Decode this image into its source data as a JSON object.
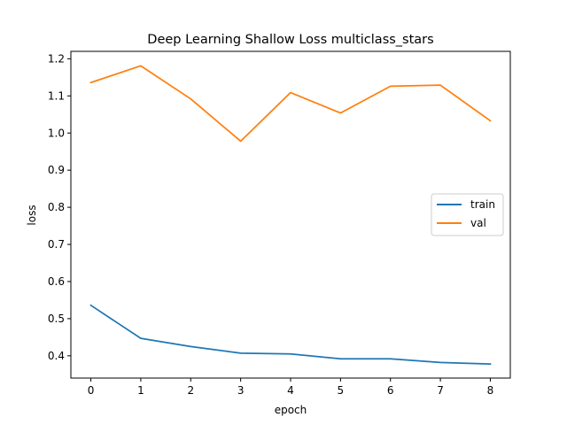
{
  "chart_data": {
    "type": "line",
    "title": "Deep Learning Shallow Loss multiclass_stars",
    "xlabel": "epoch",
    "ylabel": "loss",
    "x": [
      0,
      1,
      2,
      3,
      4,
      5,
      6,
      7,
      8
    ],
    "xlim": [
      -0.4,
      8.4
    ],
    "ylim": [
      0.34,
      1.22
    ],
    "xticks": [
      0,
      1,
      2,
      3,
      4,
      5,
      6,
      7,
      8
    ],
    "yticks": [
      "0.4",
      "0.5",
      "0.6",
      "0.7",
      "0.8",
      "0.9",
      "1.0",
      "1.1",
      "1.2"
    ],
    "grid": false,
    "legend_position": "center-right",
    "series": [
      {
        "name": "train",
        "color": "#1f77b4",
        "values": [
          0.536,
          0.447,
          0.425,
          0.407,
          0.405,
          0.392,
          0.392,
          0.382,
          0.378
        ]
      },
      {
        "name": "val",
        "color": "#ff7f0e",
        "values": [
          1.136,
          1.181,
          1.092,
          0.978,
          1.109,
          1.054,
          1.126,
          1.129,
          1.033
        ]
      }
    ]
  }
}
